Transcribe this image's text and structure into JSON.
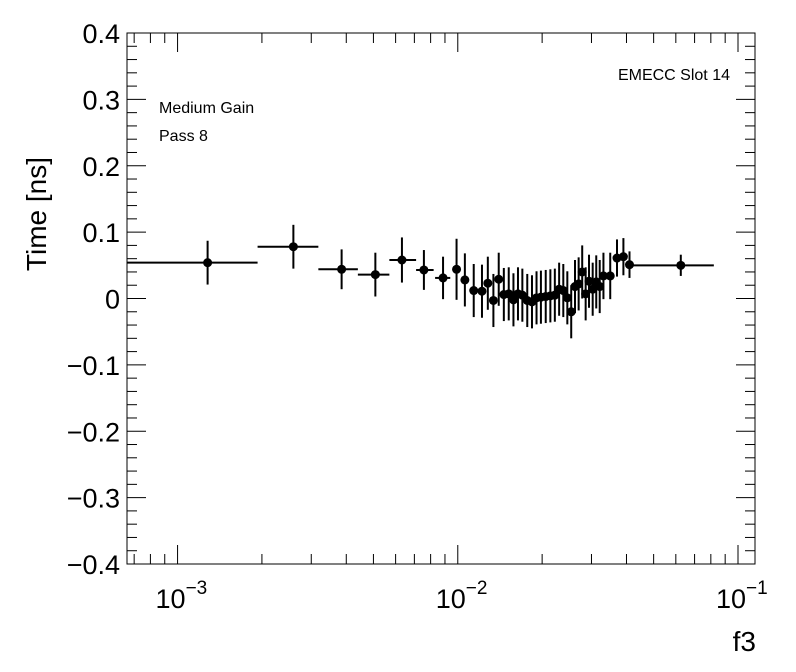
{
  "chart_data": {
    "type": "scatter",
    "xscale": "log",
    "xlim": [
      0.00066,
      0.115
    ],
    "ylim": [
      -0.4,
      0.4
    ],
    "xlabel": "f3",
    "ylabel": "Time [ns]",
    "annotations": {
      "top_right": "EMECC Slot 14",
      "left_line1": "Medium Gain",
      "left_line2": "Pass 8"
    },
    "x_major_ticks": [
      {
        "value": 0.001,
        "base": "10",
        "exp": "−3"
      },
      {
        "value": 0.01,
        "base": "10",
        "exp": "−2"
      },
      {
        "value": 0.1,
        "base": "10",
        "exp": "−1"
      }
    ],
    "y_major_ticks": [
      {
        "value": 0.4,
        "label": "0.4"
      },
      {
        "value": 0.3,
        "label": "0.3"
      },
      {
        "value": 0.2,
        "label": "0.2"
      },
      {
        "value": 0.1,
        "label": "0.1"
      },
      {
        "value": 0.0,
        "label": "0"
      },
      {
        "value": -0.1,
        "label": "−0.1"
      },
      {
        "value": -0.2,
        "label": "−0.2"
      },
      {
        "value": -0.3,
        "label": "−0.3"
      },
      {
        "value": -0.4,
        "label": "−0.4"
      }
    ],
    "points": [
      {
        "x": 0.00128,
        "y": 0.054,
        "xlo": 0.00066,
        "xhi": 0.00193,
        "err": 0.033
      },
      {
        "x": 0.00259,
        "y": 0.078,
        "xlo": 0.00193,
        "xhi": 0.00318,
        "err": 0.033
      },
      {
        "x": 0.00385,
        "y": 0.044,
        "xlo": 0.00318,
        "xhi": 0.0044,
        "err": 0.03
      },
      {
        "x": 0.00508,
        "y": 0.036,
        "xlo": 0.0044,
        "xhi": 0.0057,
        "err": 0.033
      },
      {
        "x": 0.00632,
        "y": 0.058,
        "xlo": 0.0057,
        "xhi": 0.0071,
        "err": 0.034
      },
      {
        "x": 0.00757,
        "y": 0.043,
        "xlo": 0.0071,
        "xhi": 0.0082,
        "err": 0.03
      },
      {
        "x": 0.00886,
        "y": 0.031,
        "xlo": 0.0083,
        "xhi": 0.0094,
        "err": 0.032
      },
      {
        "x": 0.0099,
        "y": 0.044,
        "xlo": 0.0097,
        "xhi": 0.0101,
        "err": 0.046
      },
      {
        "x": 0.0106,
        "y": 0.028,
        "err": 0.04
      },
      {
        "x": 0.0114,
        "y": 0.012,
        "err": 0.04
      },
      {
        "x": 0.0122,
        "y": 0.011,
        "err": 0.04
      },
      {
        "x": 0.0128,
        "y": 0.023,
        "err": 0.04
      },
      {
        "x": 0.0134,
        "y": -0.003,
        "err": 0.04
      },
      {
        "x": 0.014,
        "y": 0.029,
        "err": 0.04
      },
      {
        "x": 0.0146,
        "y": 0.006,
        "err": 0.04
      },
      {
        "x": 0.0152,
        "y": 0.007,
        "err": 0.04
      },
      {
        "x": 0.0158,
        "y": -0.002,
        "err": 0.04
      },
      {
        "x": 0.0164,
        "y": 0.007,
        "err": 0.04
      },
      {
        "x": 0.017,
        "y": 0.005,
        "err": 0.04
      },
      {
        "x": 0.0177,
        "y": -0.003,
        "err": 0.04
      },
      {
        "x": 0.0184,
        "y": -0.005,
        "err": 0.04
      },
      {
        "x": 0.0191,
        "y": 0.001,
        "err": 0.04
      },
      {
        "x": 0.0198,
        "y": 0.002,
        "err": 0.04
      },
      {
        "x": 0.0206,
        "y": 0.003,
        "err": 0.04
      },
      {
        "x": 0.0214,
        "y": 0.004,
        "err": 0.04
      },
      {
        "x": 0.0222,
        "y": 0.005,
        "err": 0.04
      },
      {
        "x": 0.023,
        "y": 0.014,
        "err": 0.04
      },
      {
        "x": 0.0238,
        "y": 0.012,
        "err": 0.04
      },
      {
        "x": 0.0246,
        "y": 0.001,
        "err": 0.04
      },
      {
        "x": 0.0254,
        "y": -0.02,
        "err": 0.04
      },
      {
        "x": 0.0262,
        "y": 0.018,
        "err": 0.04
      },
      {
        "x": 0.027,
        "y": 0.022,
        "err": 0.04
      },
      {
        "x": 0.0278,
        "y": 0.04,
        "err": 0.04
      },
      {
        "x": 0.0286,
        "y": 0.007,
        "err": 0.04
      },
      {
        "x": 0.0294,
        "y": 0.026,
        "err": 0.04
      },
      {
        "x": 0.0303,
        "y": 0.014,
        "err": 0.04
      },
      {
        "x": 0.0312,
        "y": 0.025,
        "err": 0.04
      },
      {
        "x": 0.0321,
        "y": 0.018,
        "err": 0.04
      },
      {
        "x": 0.0331,
        "y": 0.034,
        "err": 0.035
      },
      {
        "x": 0.035,
        "y": 0.034,
        "err": 0.035
      },
      {
        "x": 0.037,
        "y": 0.061,
        "xlo": 0.0362,
        "xhi": 0.0378,
        "err": 0.028
      },
      {
        "x": 0.039,
        "y": 0.063,
        "xlo": 0.0381,
        "xhi": 0.0398,
        "err": 0.028
      },
      {
        "x": 0.041,
        "y": 0.051,
        "xlo": 0.0402,
        "xhi": 0.0418,
        "err": 0.02
      },
      {
        "x": 0.0625,
        "y": 0.05,
        "xlo": 0.042,
        "xhi": 0.082,
        "err": 0.016
      }
    ]
  }
}
